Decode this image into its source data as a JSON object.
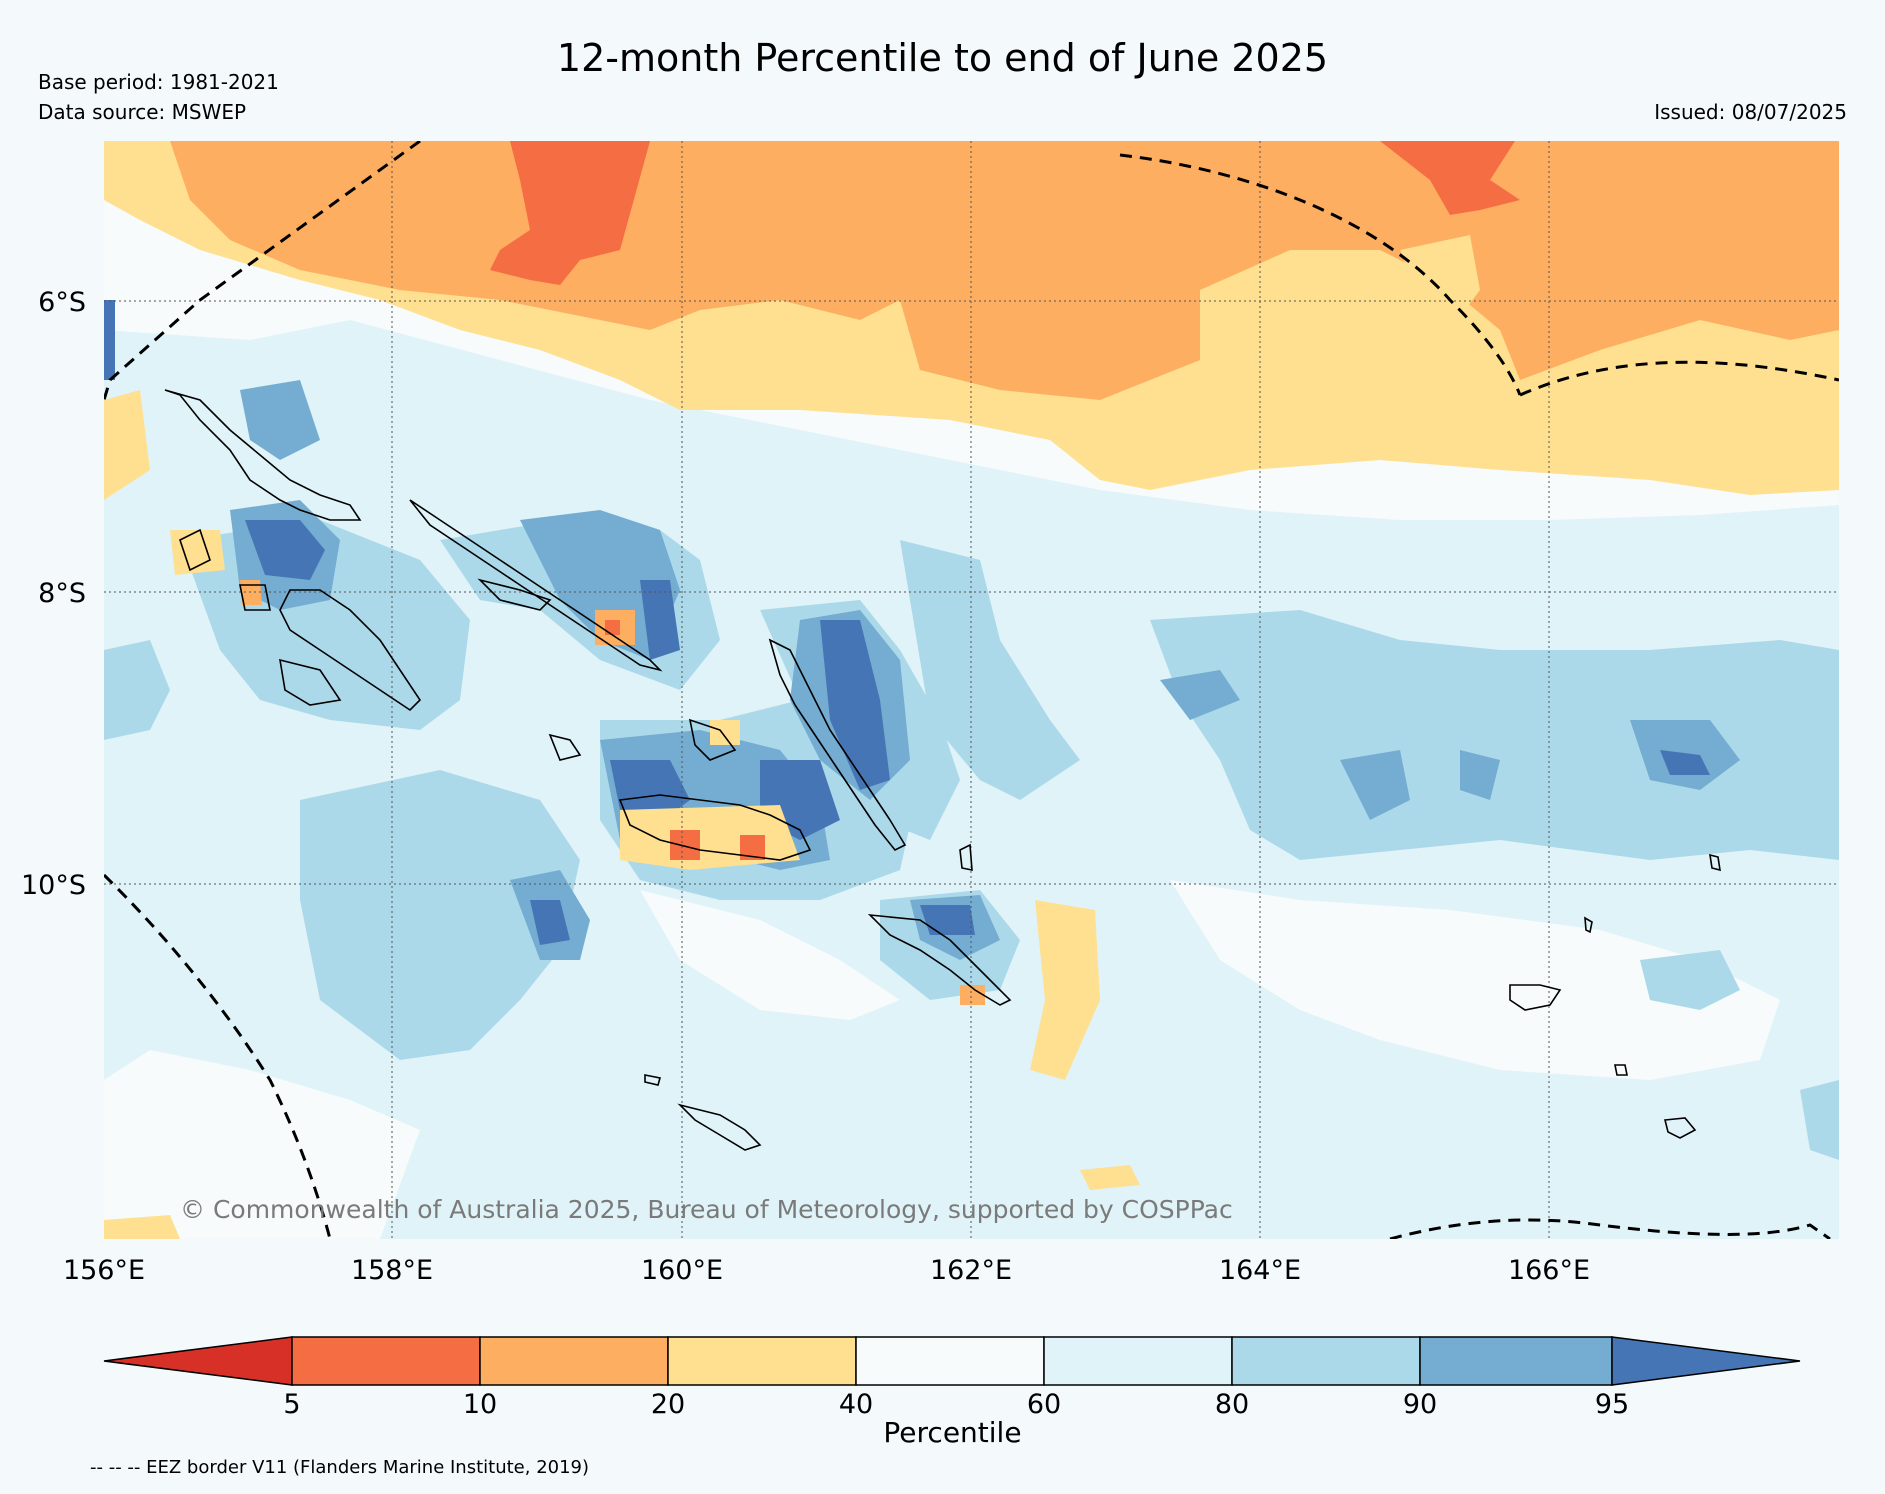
{
  "title": "12-month Percentile to end of June 2025",
  "base_period": "Base period: 1981-2021",
  "data_source": "Data source: MSWEP",
  "issued": "Issued: 08/07/2025",
  "copyright": "© Commonwealth of Australia 2025, Bureau of Meteorology, supported by COSPPac",
  "latitude_labels": [
    "6°S",
    "8°S",
    "10°S"
  ],
  "longitude_labels": [
    "156°E",
    "158°E",
    "160°E",
    "162°E",
    "164°E",
    "166°E"
  ],
  "colorbar": {
    "title": "Percentile",
    "ticks": [
      "5",
      "10",
      "20",
      "40",
      "60",
      "80",
      "90",
      "95"
    ],
    "colors": [
      "#d73027",
      "#f46d43",
      "#fdae61",
      "#fee090",
      "#f7fbfc",
      "#e0f3f8",
      "#abd9e9",
      "#74add1",
      "#4575b4"
    ]
  },
  "eez_note": "-- -- -- EEZ border V11 (Flanders Marine Institute, 2019)"
}
